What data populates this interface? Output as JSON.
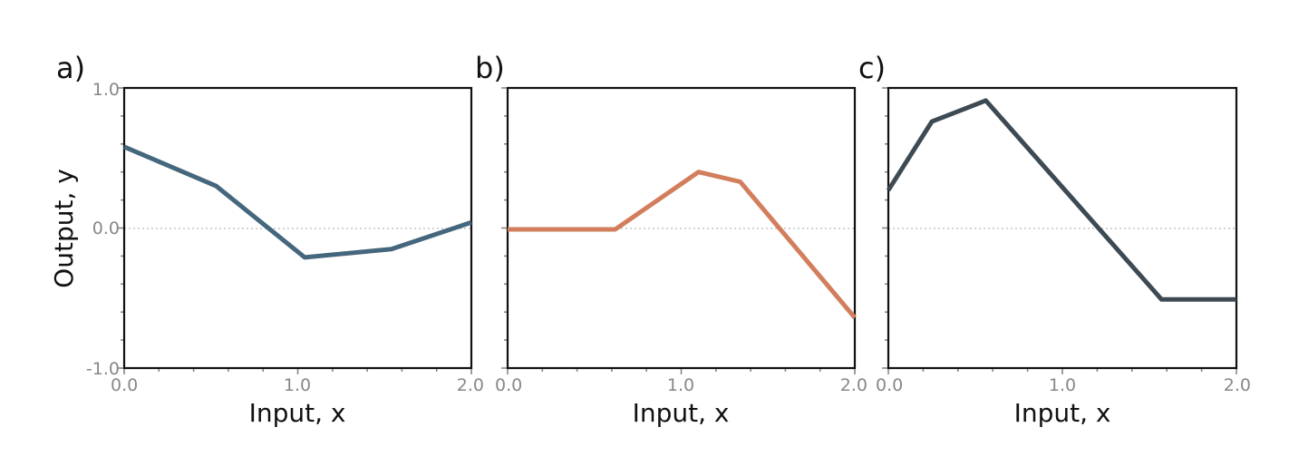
{
  "chart_data": [
    {
      "type": "line",
      "panel_label": "a)",
      "xlabel": "Input, x",
      "ylabel": "Output, y",
      "xlim": [
        0,
        2
      ],
      "ylim": [
        -1,
        1
      ],
      "xticks": [
        "0.0",
        "1.0",
        "2.0"
      ],
      "yticks": [
        "-1.0",
        "0.0",
        "1.0"
      ],
      "zero_line": true,
      "color": "#45677d",
      "x": [
        0.0,
        0.53,
        1.04,
        1.54,
        2.0
      ],
      "y": [
        0.58,
        0.3,
        -0.21,
        -0.15,
        0.04
      ]
    },
    {
      "type": "line",
      "panel_label": "b)",
      "xlabel": "Input, x",
      "ylabel": "",
      "xlim": [
        0,
        2
      ],
      "ylim": [
        -1,
        1
      ],
      "xticks": [
        "0.0",
        "1.0",
        "2.0"
      ],
      "yticks": [],
      "zero_line": true,
      "color": "#d27e5c",
      "x": [
        0.0,
        0.62,
        1.1,
        1.34,
        2.0
      ],
      "y": [
        -0.01,
        -0.01,
        0.4,
        0.33,
        -0.64
      ]
    },
    {
      "type": "line",
      "panel_label": "c)",
      "xlabel": "Input, x",
      "ylabel": "",
      "xlim": [
        0,
        2
      ],
      "ylim": [
        -1,
        1
      ],
      "xticks": [
        "0.0",
        "1.0",
        "2.0"
      ],
      "yticks": [],
      "zero_line": true,
      "color": "#3d4a53",
      "x": [
        0.0,
        0.25,
        0.56,
        1.57,
        2.0
      ],
      "y": [
        0.27,
        0.76,
        0.91,
        -0.51,
        -0.51
      ]
    }
  ]
}
